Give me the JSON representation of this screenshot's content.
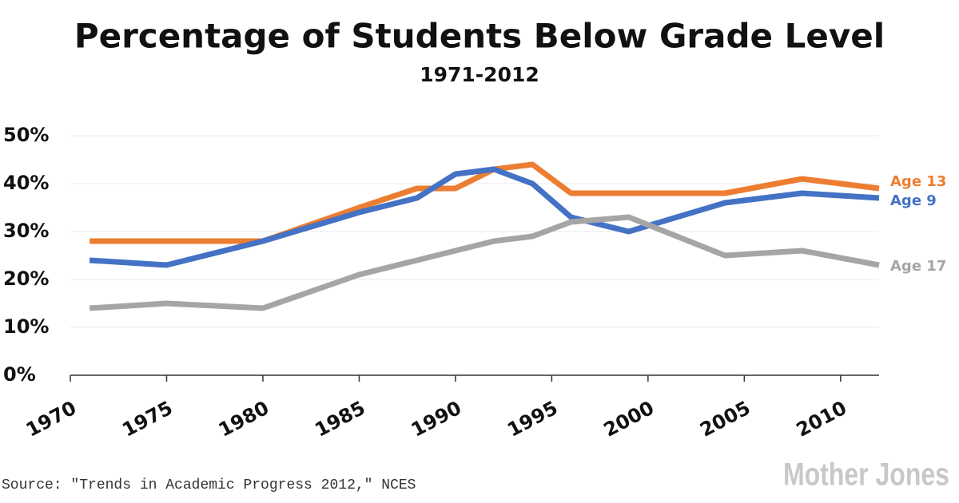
{
  "chart_data": {
    "type": "line",
    "title": "Percentage of Students Below Grade Level",
    "subtitle": "1971-2012",
    "x": [
      1971,
      1975,
      1980,
      1985,
      1988,
      1990,
      1992,
      1994,
      1996,
      1999,
      2004,
      2008,
      2012
    ],
    "series": [
      {
        "name": "Age 13",
        "color": "#ed7d31",
        "values": [
          28,
          28,
          28,
          35,
          39,
          39,
          43,
          44,
          38,
          38,
          38,
          41,
          39
        ]
      },
      {
        "name": "Age 9",
        "color": "#4472c4",
        "values": [
          24,
          23,
          28,
          34,
          37,
          42,
          43,
          40,
          33,
          30,
          36,
          38,
          37
        ]
      },
      {
        "name": "Age 17",
        "color": "#a5a5a5",
        "values": [
          14,
          15,
          14,
          21,
          24,
          26,
          28,
          29,
          32,
          33,
          25,
          26,
          23
        ]
      }
    ],
    "xlim": [
      1970,
      2012
    ],
    "xticks": [
      1970,
      1975,
      1980,
      1985,
      1990,
      1995,
      2000,
      2005,
      2010
    ],
    "ylim": [
      0,
      50
    ],
    "yticks": [
      {
        "value": 0,
        "label": "0%"
      },
      {
        "value": 10,
        "label": "10%"
      },
      {
        "value": 20,
        "label": "20%"
      },
      {
        "value": 30,
        "label": "30%"
      },
      {
        "value": 40,
        "label": "40%"
      },
      {
        "value": 50,
        "label": "50%"
      }
    ],
    "grid": true,
    "source": "Source: \"Trends in Academic Progress 2012,\" NCES",
    "brand": "Mother Jones"
  }
}
